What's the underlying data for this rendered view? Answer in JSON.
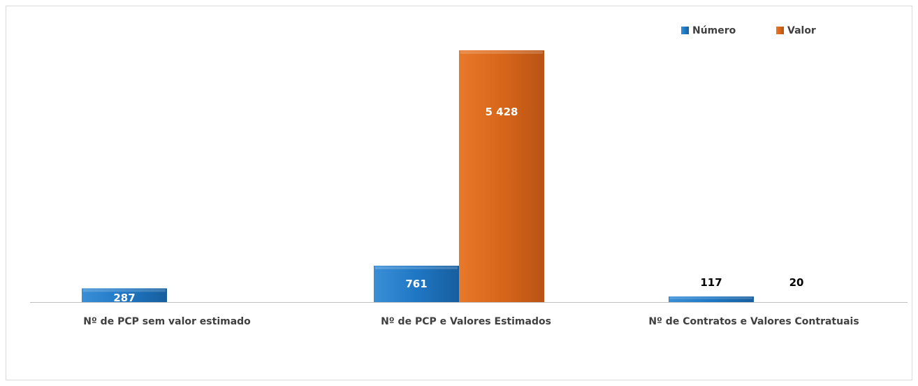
{
  "chart_data": {
    "type": "bar",
    "categories": [
      "Nº de PCP sem valor estimado",
      "Nº de PCP e Valores Estimados",
      "Nº de Contratos e Valores Contratuais"
    ],
    "series": [
      {
        "name": "Número",
        "values": [
          287,
          761,
          117
        ],
        "labels": [
          "287",
          "761",
          "117"
        ],
        "color": "#1f77c4"
      },
      {
        "name": "Valor",
        "values": [
          null,
          5428,
          20
        ],
        "labels": [
          "",
          "5 428",
          "20"
        ],
        "color": "#d8661a"
      }
    ],
    "legend_position": "top-right",
    "grid": false,
    "ylim": [
      0,
      5428
    ]
  }
}
